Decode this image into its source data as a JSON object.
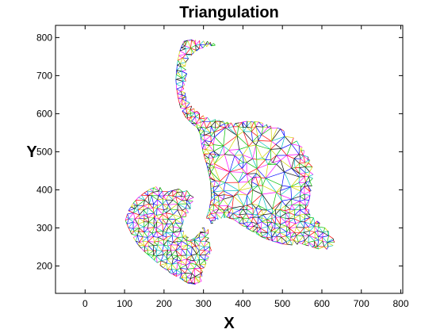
{
  "chart_data": {
    "type": "scatter",
    "title": "Triangulation",
    "xlabel": "X",
    "ylabel": "Y",
    "xlim": [
      -75,
      805
    ],
    "ylim": [
      128,
      832
    ],
    "xticks": [
      0,
      100,
      200,
      300,
      400,
      500,
      600,
      700,
      800
    ],
    "yticks": [
      200,
      300,
      400,
      500,
      600,
      700,
      800
    ],
    "grid": false,
    "legend": "none",
    "edge_colors": [
      "#0000ff",
      "#ff0000",
      "#00c000",
      "#00c0c0",
      "#ff00ff",
      "#d4d400",
      "#000000"
    ],
    "outline": [
      [
        250,
        790
      ],
      [
        270,
        795
      ],
      [
        290,
        792
      ],
      [
        310,
        790
      ],
      [
        325,
        785
      ],
      [
        330,
        780
      ],
      [
        320,
        778
      ],
      [
        308,
        776
      ],
      [
        290,
        770
      ],
      [
        275,
        760
      ],
      [
        262,
        745
      ],
      [
        254,
        725
      ],
      [
        258,
        705
      ],
      [
        265,
        688
      ],
      [
        255,
        685
      ],
      [
        250,
        665
      ],
      [
        256,
        645
      ],
      [
        270,
        620
      ],
      [
        290,
        600
      ],
      [
        310,
        590
      ],
      [
        330,
        585
      ],
      [
        350,
        580
      ],
      [
        380,
        574
      ],
      [
        410,
        580
      ],
      [
        440,
        578
      ],
      [
        470,
        568
      ],
      [
        495,
        560
      ],
      [
        520,
        545
      ],
      [
        545,
        520
      ],
      [
        560,
        495
      ],
      [
        575,
        470
      ],
      [
        578,
        440
      ],
      [
        575,
        410
      ],
      [
        570,
        385
      ],
      [
        565,
        360
      ],
      [
        570,
        335
      ],
      [
        588,
        318
      ],
      [
        608,
        300
      ],
      [
        625,
        282
      ],
      [
        632,
        262
      ],
      [
        625,
        245
      ],
      [
        600,
        242
      ],
      [
        575,
        250
      ],
      [
        550,
        258
      ],
      [
        525,
        255
      ],
      [
        500,
        258
      ],
      [
        475,
        265
      ],
      [
        450,
        275
      ],
      [
        425,
        290
      ],
      [
        400,
        305
      ],
      [
        380,
        320
      ],
      [
        360,
        328
      ],
      [
        345,
        325
      ],
      [
        330,
        320
      ],
      [
        318,
        305
      ],
      [
        312,
        285
      ],
      [
        315,
        262
      ],
      [
        320,
        240
      ],
      [
        310,
        215
      ],
      [
        298,
        185
      ],
      [
        295,
        160
      ],
      [
        280,
        152
      ],
      [
        260,
        155
      ],
      [
        240,
        168
      ],
      [
        215,
        182
      ],
      [
        190,
        202
      ],
      [
        168,
        222
      ],
      [
        150,
        238
      ],
      [
        135,
        255
      ],
      [
        122,
        275
      ],
      [
        110,
        300
      ],
      [
        102,
        320
      ],
      [
        110,
        345
      ],
      [
        122,
        365
      ],
      [
        135,
        380
      ],
      [
        150,
        392
      ],
      [
        165,
        402
      ],
      [
        180,
        408
      ],
      [
        200,
        405
      ],
      [
        210,
        395
      ],
      [
        222,
        398
      ],
      [
        238,
        402
      ],
      [
        258,
        398
      ],
      [
        270,
        392
      ],
      [
        275,
        380
      ],
      [
        272,
        360
      ],
      [
        262,
        340
      ],
      [
        250,
        320
      ],
      [
        245,
        300
      ],
      [
        255,
        282
      ],
      [
        268,
        268
      ],
      [
        280,
        275
      ],
      [
        292,
        290
      ],
      [
        305,
        320
      ],
      [
        315,
        350
      ],
      [
        320,
        380
      ],
      [
        318,
        420
      ],
      [
        310,
        460
      ],
      [
        300,
        495
      ],
      [
        295,
        520
      ],
      [
        292,
        545
      ],
      [
        285,
        562
      ],
      [
        270,
        575
      ],
      [
        255,
        590
      ],
      [
        242,
        615
      ],
      [
        236,
        640
      ],
      [
        232,
        665
      ],
      [
        230,
        690
      ],
      [
        232,
        715
      ],
      [
        235,
        740
      ],
      [
        240,
        765
      ]
    ],
    "holes": [
      [
        [
          268,
          325
        ],
        [
          282,
          322
        ],
        [
          292,
          308
        ],
        [
          285,
          295
        ],
        [
          268,
          292
        ],
        [
          256,
          302
        ],
        [
          258,
          316
        ]
      ],
      [
        [
          308,
          325
        ],
        [
          318,
          318
        ],
        [
          320,
          305
        ],
        [
          312,
          296
        ],
        [
          302,
          300
        ],
        [
          300,
          314
        ]
      ]
    ]
  }
}
